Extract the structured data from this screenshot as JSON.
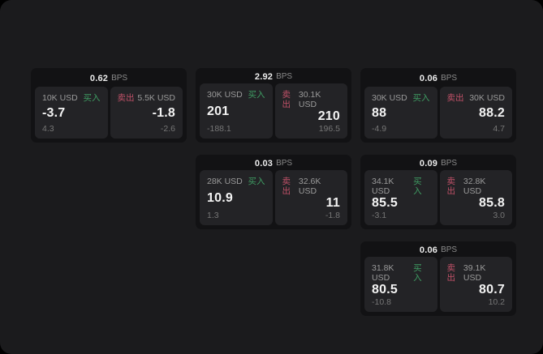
{
  "colors": {
    "background": "#1b1b1d",
    "card_background": "#121214",
    "panel_background": "#232326",
    "buy_accent": "#3f9d63",
    "sell_accent": "#c05168",
    "price_text": "#f3f3f3",
    "label_text": "#9a9a9a",
    "delta_text": "#767676"
  },
  "labels": {
    "unit": "BPS",
    "buy": "买入",
    "sell": "卖出"
  },
  "cards": [
    {
      "row": 1,
      "col": 1,
      "bps": "0.62",
      "buy": {
        "size": "10K USD",
        "price": "-3.7",
        "delta": "4.3"
      },
      "sell": {
        "size": "5.5K USD",
        "price": "-1.8",
        "delta": "-2.6"
      }
    },
    {
      "row": 1,
      "col": 2,
      "bps": "2.92",
      "buy": {
        "size": "30K USD",
        "price": "201",
        "delta": "-188.1"
      },
      "sell": {
        "size": "30.1K USD",
        "price": "210",
        "delta": "196.5"
      }
    },
    {
      "row": 1,
      "col": 3,
      "bps": "0.06",
      "buy": {
        "size": "30K USD",
        "price": "88",
        "delta": "-4.9"
      },
      "sell": {
        "size": "30K USD",
        "price": "88.2",
        "delta": "4.7"
      }
    },
    {
      "row": 2,
      "col": 2,
      "bps": "0.03",
      "buy": {
        "size": "28K USD",
        "price": "10.9",
        "delta": "1.3"
      },
      "sell": {
        "size": "32.6K USD",
        "price": "11",
        "delta": "-1.8"
      }
    },
    {
      "row": 2,
      "col": 3,
      "bps": "0.09",
      "buy": {
        "size": "34.1K USD",
        "price": "85.5",
        "delta": "-3.1"
      },
      "sell": {
        "size": "32.8K USD",
        "price": "85.8",
        "delta": "3.0"
      }
    },
    {
      "row": 3,
      "col": 3,
      "bps": "0.06",
      "buy": {
        "size": "31.8K USD",
        "price": "80.5",
        "delta": "-10.8"
      },
      "sell": {
        "size": "39.1K USD",
        "price": "80.7",
        "delta": "10.2"
      }
    }
  ]
}
